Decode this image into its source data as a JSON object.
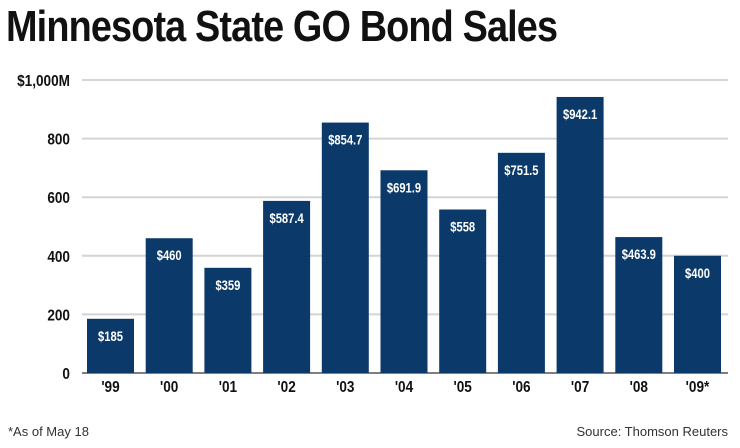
{
  "chart_data": {
    "type": "bar",
    "title": "Minnesota State GO Bond Sales",
    "categories": [
      "'99",
      "'00",
      "'01",
      "'02",
      "'03",
      "'04",
      "'05",
      "'06",
      "'07",
      "'08",
      "'09*"
    ],
    "values": [
      185,
      460,
      359,
      587.4,
      854.7,
      691.9,
      558,
      751.5,
      942.1,
      463.9,
      400
    ],
    "data_labels": [
      "$185",
      "$460",
      "$359",
      "$587.4",
      "$854.7",
      "$691.9",
      "$558",
      "$751.5",
      "$942.1",
      "$463.9",
      "$400"
    ],
    "yticks": [
      0,
      200,
      400,
      600,
      800,
      1000
    ],
    "ytick_labels": [
      "0",
      "200",
      "400",
      "600",
      "800",
      "$1,000M"
    ],
    "ylim": [
      0,
      1000
    ],
    "xlabel": "",
    "ylabel": "",
    "grid": true,
    "bar_color": "#0b3a6a",
    "footnote": "*As of May 18",
    "source": "Source: Thomson Reuters"
  }
}
